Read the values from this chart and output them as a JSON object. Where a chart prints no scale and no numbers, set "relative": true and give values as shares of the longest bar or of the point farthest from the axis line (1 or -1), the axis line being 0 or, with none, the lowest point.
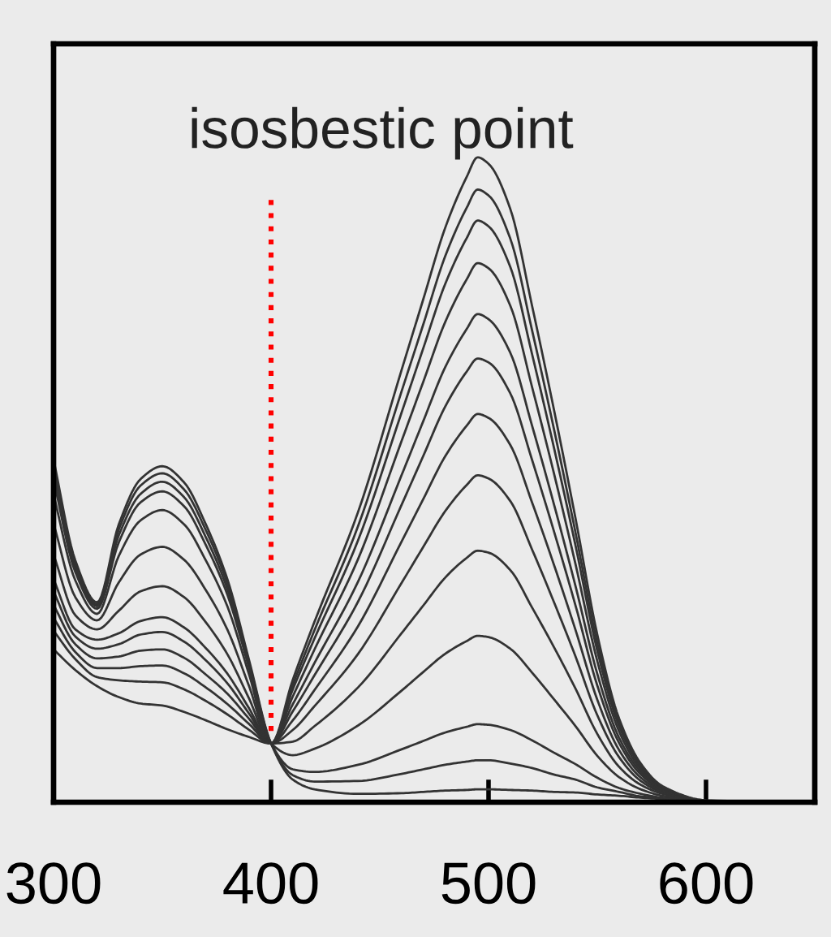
{
  "chart_data": {
    "type": "line",
    "relative": true,
    "tick_labels": "x",
    "line_style": "solid",
    "x": [
      300,
      310,
      320,
      330,
      340,
      350,
      360,
      370,
      380,
      390,
      400,
      410,
      420,
      440,
      460,
      470,
      480,
      490,
      495,
      500,
      510,
      520,
      530,
      540,
      550,
      560,
      570,
      580,
      600,
      650
    ],
    "xlim": [
      300,
      650
    ],
    "xticks": [
      300,
      400,
      500,
      600
    ],
    "series": [
      {
        "color": "#333333",
        "values": [
          0.531,
          0.375,
          0.31,
          0.431,
          0.501,
          0.521,
          0.496,
          0.431,
          0.345,
          0.219,
          0.091,
          0.035,
          0.02,
          0.013,
          0.014,
          0.016,
          0.018,
          0.019,
          0.02,
          0.02,
          0.019,
          0.018,
          0.016,
          0.015,
          0.012,
          0.01,
          0.007,
          0.005,
          0.002,
          0
        ]
      },
      {
        "color": "#333333",
        "values": [
          0.522,
          0.37,
          0.307,
          0.423,
          0.491,
          0.51,
          0.485,
          0.422,
          0.338,
          0.215,
          0.091,
          0.042,
          0.032,
          0.033,
          0.044,
          0.051,
          0.058,
          0.063,
          0.065,
          0.065,
          0.06,
          0.053,
          0.043,
          0.035,
          0.023,
          0.016,
          0.009,
          0.006,
          0.002,
          0
        ]
      },
      {
        "color": "#333333",
        "values": [
          0.512,
          0.364,
          0.304,
          0.414,
          0.478,
          0.497,
          0.473,
          0.411,
          0.33,
          0.211,
          0.091,
          0.051,
          0.047,
          0.058,
          0.082,
          0.095,
          0.108,
          0.117,
          0.121,
          0.12,
          0.112,
          0.096,
          0.077,
          0.059,
          0.038,
          0.022,
          0.013,
          0.007,
          0.002,
          0
        ]
      },
      {
        "color": "#333333",
        "values": [
          0.5,
          0.357,
          0.3,
          0.403,
          0.465,
          0.482,
          0.459,
          0.399,
          0.321,
          0.207,
          0.091,
          0.073,
          0.083,
          0.119,
          0.173,
          0.202,
          0.23,
          0.25,
          0.258,
          0.256,
          0.238,
          0.201,
          0.16,
          0.118,
          0.072,
          0.039,
          0.02,
          0.01,
          0.002,
          0
        ]
      },
      {
        "color": "#333333",
        "values": [
          0.477,
          0.344,
          0.292,
          0.382,
          0.437,
          0.453,
          0.431,
          0.375,
          0.303,
          0.197,
          0.091,
          0.094,
          0.118,
          0.178,
          0.262,
          0.305,
          0.348,
          0.379,
          0.39,
          0.387,
          0.36,
          0.302,
          0.241,
          0.176,
          0.106,
          0.055,
          0.027,
          0.013,
          0.002,
          0
        ]
      },
      {
        "color": "#333333",
        "values": [
          0.432,
          0.318,
          0.282,
          0.341,
          0.384,
          0.396,
          0.376,
          0.329,
          0.267,
          0.179,
          0.091,
          0.112,
          0.149,
          0.23,
          0.34,
          0.396,
          0.451,
          0.492,
          0.507,
          0.502,
          0.467,
          0.392,
          0.311,
          0.226,
          0.135,
          0.07,
          0.033,
          0.015,
          0.002,
          0
        ]
      },
      {
        "color": "#333333",
        "values": [
          0.384,
          0.29,
          0.268,
          0.297,
          0.327,
          0.335,
          0.318,
          0.279,
          0.229,
          0.16,
          0.091,
          0.127,
          0.174,
          0.273,
          0.404,
          0.47,
          0.536,
          0.584,
          0.602,
          0.596,
          0.554,
          0.465,
          0.369,
          0.267,
          0.159,
          0.081,
          0.038,
          0.017,
          0.002,
          0
        ]
      },
      {
        "color": "#333333",
        "values": [
          0.346,
          0.268,
          0.252,
          0.262,
          0.281,
          0.287,
          0.271,
          0.239,
          0.199,
          0.145,
          0.091,
          0.141,
          0.197,
          0.311,
          0.461,
          0.537,
          0.613,
          0.668,
          0.688,
          0.682,
          0.634,
          0.531,
          0.421,
          0.305,
          0.181,
          0.092,
          0.043,
          0.019,
          0.002,
          0
        ]
      },
      {
        "color": "#333333",
        "values": [
          0.327,
          0.257,
          0.238,
          0.245,
          0.26,
          0.264,
          0.249,
          0.22,
          0.184,
          0.137,
          0.091,
          0.152,
          0.216,
          0.342,
          0.507,
          0.591,
          0.674,
          0.734,
          0.757,
          0.749,
          0.697,
          0.584,
          0.463,
          0.335,
          0.199,
          0.1,
          0.047,
          0.02,
          0.002,
          0
        ]
      },
      {
        "color": "#333333",
        "values": [
          0.306,
          0.245,
          0.223,
          0.226,
          0.235,
          0.237,
          0.224,
          0.198,
          0.168,
          0.129,
          0.091,
          0.164,
          0.237,
          0.377,
          0.56,
          0.652,
          0.744,
          0.811,
          0.836,
          0.828,
          0.77,
          0.644,
          0.511,
          0.369,
          0.219,
          0.11,
          0.051,
          0.022,
          0.002,
          0
        ]
      },
      {
        "color": "#333333",
        "values": [
          0.286,
          0.233,
          0.208,
          0.208,
          0.211,
          0.212,
          0.2,
          0.178,
          0.152,
          0.121,
          0.091,
          0.175,
          0.254,
          0.406,
          0.604,
          0.704,
          0.803,
          0.875,
          0.902,
          0.893,
          0.83,
          0.695,
          0.551,
          0.398,
          0.235,
          0.118,
          0.055,
          0.023,
          0.002,
          0
        ]
      },
      {
        "color": "#333333",
        "values": [
          0.266,
          0.222,
          0.194,
          0.189,
          0.187,
          0.186,
          0.175,
          0.157,
          0.136,
          0.112,
          0.091,
          0.182,
          0.267,
          0.428,
          0.637,
          0.741,
          0.846,
          0.922,
          0.95,
          0.941,
          0.874,
          0.732,
          0.58,
          0.418,
          0.247,
          0.124,
          0.057,
          0.024,
          0.002,
          0
        ]
      },
      {
        "color": "#333333",
        "values": [
          0.237,
          0.205,
          0.18,
          0.163,
          0.153,
          0.15,
          0.14,
          0.127,
          0.113,
          0.101,
          0.091,
          0.19,
          0.28,
          0.45,
          0.67,
          0.78,
          0.89,
          0.97,
          1.0,
          0.99,
          0.92,
          0.77,
          0.61,
          0.44,
          0.26,
          0.13,
          0.06,
          0.025,
          0.003,
          0
        ]
      }
    ],
    "ref_lines": [
      {
        "axis": "x",
        "value": 400,
        "label": "isosbestic point",
        "color": "#ff0000",
        "line_style": "dotted"
      }
    ]
  }
}
